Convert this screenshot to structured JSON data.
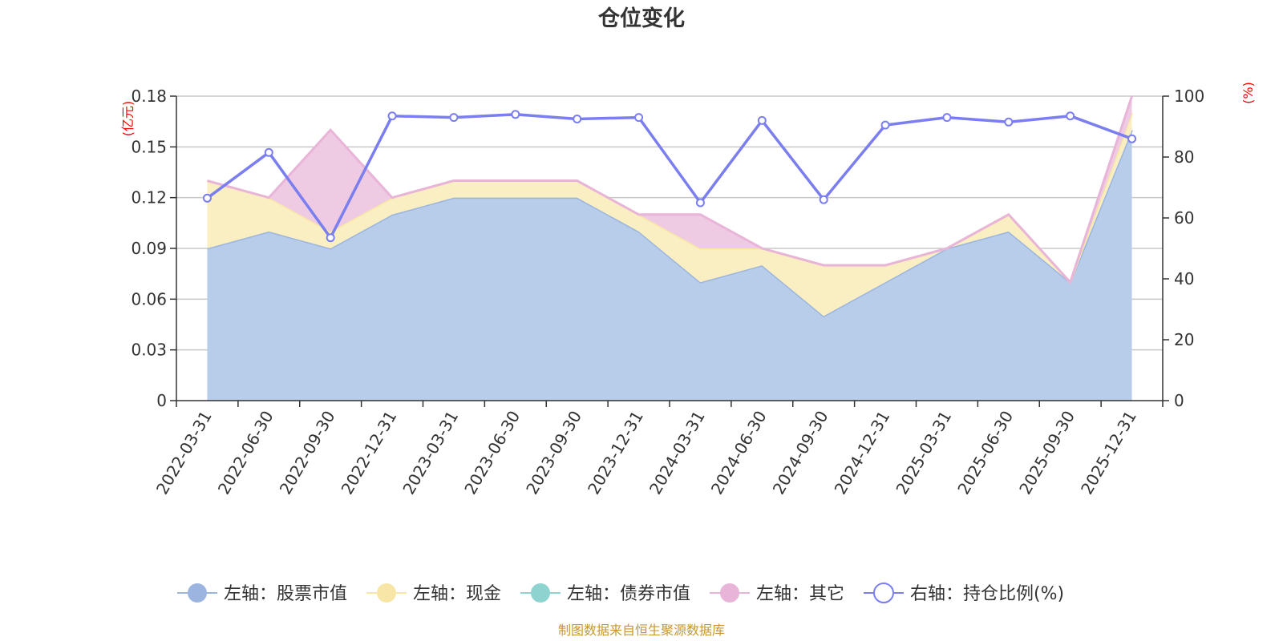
{
  "chart_data": {
    "type": "area",
    "title": "仓位变化",
    "categories": [
      "2022-03-31",
      "2022-06-30",
      "2022-09-30",
      "2022-12-31",
      "2023-03-31",
      "2023-06-30",
      "2023-09-30",
      "2023-12-31",
      "2024-03-31",
      "2024-06-30",
      "2024-09-30",
      "2024-12-31",
      "2025-03-31",
      "2025-06-30",
      "2025-09-30",
      "2025-12-31"
    ],
    "left_axis": {
      "unit": "(亿元)",
      "ylim": [
        0,
        0.18
      ],
      "ticks": [
        "0",
        "0.03",
        "0.06",
        "0.09",
        "0.12",
        "0.15",
        "0.18"
      ]
    },
    "right_axis": {
      "unit": "(%)",
      "ylim": [
        0,
        100
      ],
      "ticks": [
        "0",
        "20",
        "40",
        "60",
        "80",
        "100"
      ]
    },
    "series": [
      {
        "name": "左轴：股票市值",
        "axis": "left",
        "color": "#9bb5e0",
        "fill": "#b8cdea",
        "values": [
          0.09,
          0.1,
          0.09,
          0.11,
          0.12,
          0.12,
          0.12,
          0.1,
          0.07,
          0.08,
          0.05,
          0.07,
          0.09,
          0.1,
          0.07,
          0.16
        ]
      },
      {
        "name": "左轴：现金",
        "axis": "left",
        "color": "#f7e6a6",
        "fill": "#faefc2",
        "values": [
          0.04,
          0.02,
          0.01,
          0.01,
          0.01,
          0.01,
          0.01,
          0.01,
          0.02,
          0.01,
          0.03,
          0.01,
          0.0,
          0.01,
          0.0,
          0.01
        ]
      },
      {
        "name": "左轴：债券市值",
        "axis": "left",
        "color": "#8fd3d1",
        "fill": "#b5e3e2",
        "values": [
          0,
          0,
          0,
          0,
          0,
          0,
          0,
          0,
          0,
          0,
          0,
          0,
          0,
          0,
          0,
          0
        ]
      },
      {
        "name": "左轴：其它",
        "axis": "left",
        "color": "#e8b4d8",
        "fill": "#eecbe3",
        "values": [
          0.0,
          0.0,
          0.06,
          0.0,
          0.0,
          0.0,
          0.0,
          0.0,
          0.02,
          0.0,
          0.0,
          0.0,
          0.0,
          0.0,
          0.0,
          0.01
        ]
      },
      {
        "name": "右轴：持仓比例(%)",
        "axis": "right",
        "color": "#7b7ef0",
        "type": "line",
        "values": [
          66.5,
          81.5,
          53.5,
          93.5,
          93.0,
          94.0,
          92.5,
          93.0,
          65.0,
          92.0,
          66.0,
          90.5,
          93.0,
          91.5,
          93.5,
          86.0
        ]
      }
    ]
  },
  "footer": {
    "source": "制图数据来自恒生聚源数据库"
  }
}
